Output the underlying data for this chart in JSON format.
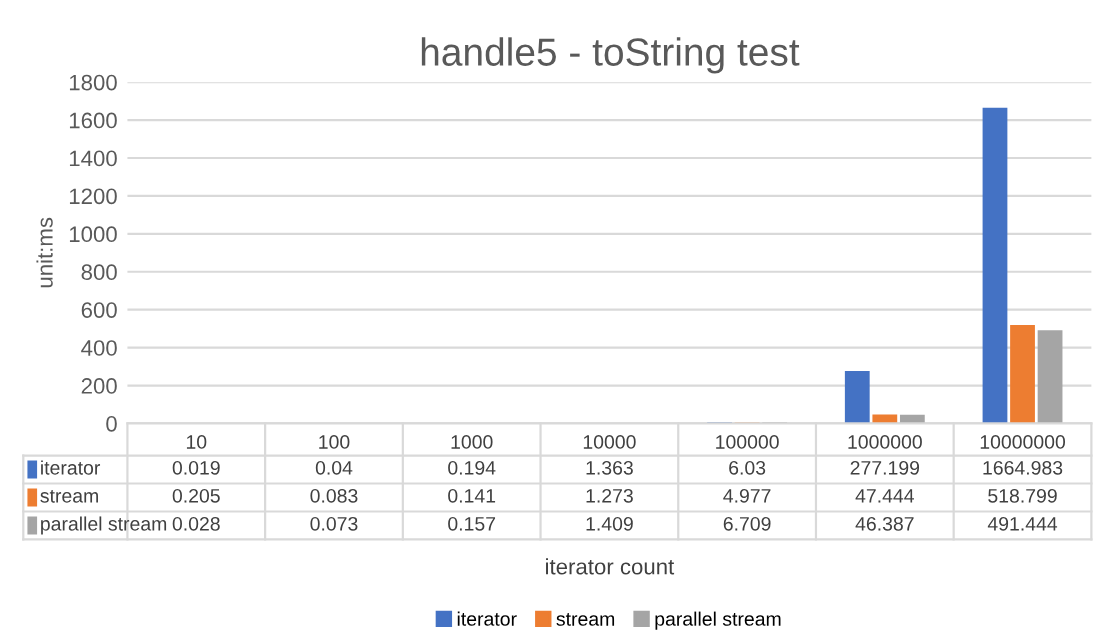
{
  "chart_data": {
    "type": "bar",
    "title": "handle5 - toString test",
    "xlabel": "iterator count",
    "ylabel": "unit:ms",
    "categories": [
      "10",
      "100",
      "1000",
      "10000",
      "100000",
      "1000000",
      "10000000"
    ],
    "series": [
      {
        "name": "iterator",
        "color": "#4472c4",
        "values": [
          0.019,
          0.04,
          0.194,
          1.363,
          6.03,
          277.199,
          1664.983
        ]
      },
      {
        "name": "stream",
        "color": "#ed7d31",
        "values": [
          0.205,
          0.083,
          0.141,
          1.273,
          4.977,
          47.444,
          518.799
        ]
      },
      {
        "name": "parallel stream",
        "color": "#a5a5a5",
        "values": [
          0.028,
          0.073,
          0.157,
          1.409,
          6.709,
          46.387,
          491.444
        ]
      }
    ],
    "ylim": [
      0,
      1800
    ],
    "yticks": [
      0,
      200,
      400,
      600,
      800,
      1000,
      1200,
      1400,
      1600,
      1800
    ],
    "grid": "y",
    "legend": "bottom",
    "data_labels": true
  }
}
